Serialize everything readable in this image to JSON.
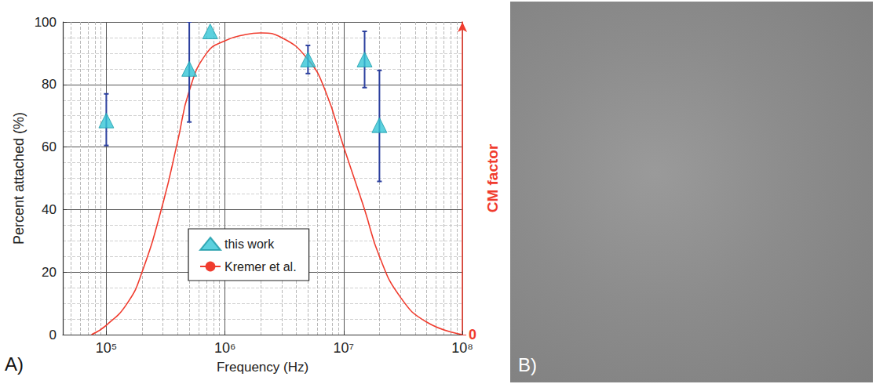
{
  "chart_data": {
    "type": "scatter",
    "annotations": [
      "A)"
    ],
    "x_label": "Frequency (Hz)",
    "y_label": "Percent attached (%)",
    "y2_label": "CM factor",
    "log": "x",
    "grid": true,
    "legend": "center",
    "xlim": [
      43000,
      100000000
    ],
    "xticks": [
      {
        "value": 100000,
        "label": "10⁵"
      },
      {
        "value": 1000000,
        "label": "10⁶"
      },
      {
        "value": 10000000,
        "label": "10⁷"
      },
      {
        "value": 100000000,
        "label": "10⁸"
      }
    ],
    "ylim": [
      0,
      100
    ],
    "yticks": [
      0,
      20,
      40,
      60,
      80,
      100
    ],
    "y2lim": [
      0,
      1
    ],
    "y2ticks": [
      0
    ],
    "series": [
      {
        "name": "this work",
        "type": "scatter",
        "marker": "triangle",
        "color": "#33c6d6",
        "x": [
          100000,
          500000,
          750000,
          5000000,
          15000000,
          20000000
        ],
        "values": [
          68.5,
          85,
          97,
          88,
          88,
          67
        ],
        "error_bars": [
          [
            60.5,
            77
          ],
          [
            68,
            100
          ],
          null,
          [
            83.5,
            92.5
          ],
          [
            79,
            97
          ],
          [
            49,
            84.5
          ]
        ]
      },
      {
        "name": "Kremer et al.",
        "type": "line",
        "axis": "y2",
        "line_style": "solid",
        "color": "#f03c2e",
        "x": [
          75000,
          100000,
          150000,
          200000,
          300000,
          400000,
          500000,
          700000,
          1000000,
          1500000,
          2000000,
          3000000,
          5000000,
          7000000,
          10000000,
          15000000,
          20000000,
          30000000,
          50000000,
          100000000
        ],
        "values": [
          0,
          0.03,
          0.1,
          0.2,
          0.42,
          0.62,
          0.78,
          0.9,
          0.94,
          0.96,
          0.965,
          0.95,
          0.88,
          0.78,
          0.6,
          0.4,
          0.25,
          0.12,
          0.04,
          0
        ]
      }
    ]
  },
  "image_panel": {
    "label": "B)"
  }
}
